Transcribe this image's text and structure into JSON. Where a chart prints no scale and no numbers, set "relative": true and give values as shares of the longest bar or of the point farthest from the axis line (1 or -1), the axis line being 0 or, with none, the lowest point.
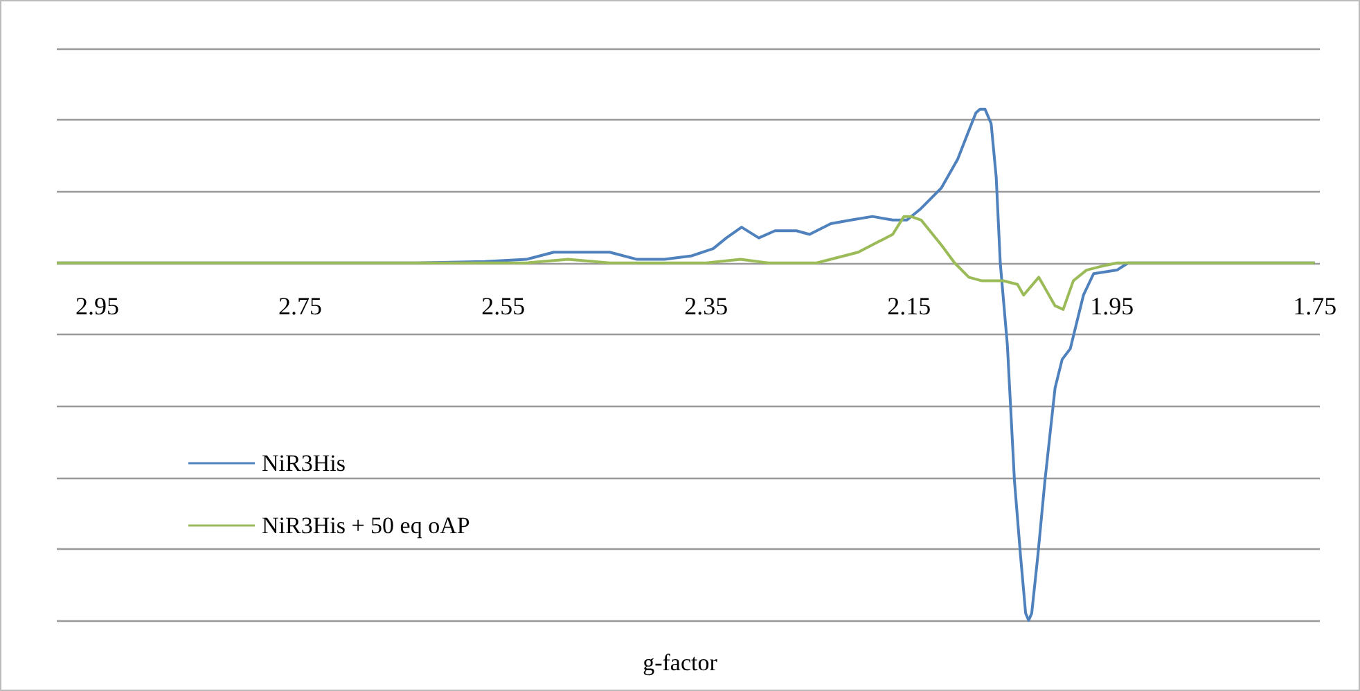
{
  "chart_data": {
    "type": "line",
    "relative": true,
    "xlabel": "g-factor",
    "xlim": [
      2.99,
      1.745
    ],
    "xticks": [
      2.95,
      2.75,
      2.55,
      2.35,
      2.15,
      1.95,
      1.75
    ],
    "grid": "y",
    "legend": "bottom left",
    "marker": "none",
    "line_style": "solid",
    "series": [
      {
        "name": "NiR3His",
        "color": "#4f81bd",
        "x": [
          2.99,
          2.636,
          2.568,
          2.527,
          2.5,
          2.473,
          2.445,
          2.418,
          2.391,
          2.364,
          2.343,
          2.33,
          2.315,
          2.298,
          2.282,
          2.261,
          2.248,
          2.227,
          2.207,
          2.186,
          2.166,
          2.152,
          2.139,
          2.118,
          2.102,
          2.091,
          2.084,
          2.08,
          2.075,
          2.069,
          2.064,
          2.06,
          2.053,
          2.046,
          2.04,
          2.035,
          2.032,
          2.029,
          2.023,
          2.016,
          2.006,
          1.999,
          1.991,
          1.978,
          1.968,
          1.945,
          1.934,
          1.75
        ],
        "values": [
          0,
          0,
          0.004,
          0.01,
          0.03,
          0.03,
          0.03,
          0.01,
          0.01,
          0.02,
          0.04,
          0.07,
          0.1,
          0.07,
          0.09,
          0.09,
          0.08,
          0.11,
          0.12,
          0.13,
          0.12,
          0.12,
          0.15,
          0.21,
          0.29,
          0.37,
          0.42,
          0.43,
          0.43,
          0.39,
          0.24,
          0,
          -0.23,
          -0.61,
          -0.82,
          -0.98,
          -1,
          -0.98,
          -0.82,
          -0.61,
          -0.35,
          -0.27,
          -0.24,
          -0.09,
          -0.03,
          -0.02,
          0,
          0
        ]
      },
      {
        "name": "NiR3His + 50 eq oAP",
        "color": "#9bbb59",
        "x": [
          2.99,
          2.527,
          2.486,
          2.445,
          2.35,
          2.316,
          2.289,
          2.241,
          2.2,
          2.166,
          2.155,
          2.148,
          2.138,
          2.118,
          2.105,
          2.091,
          2.078,
          2.057,
          2.043,
          2.037,
          2.022,
          2.016,
          2.006,
          1.998,
          1.988,
          1.975,
          1.961,
          1.945,
          1.75
        ],
        "values": [
          0,
          0,
          0.01,
          0,
          0,
          0.01,
          0,
          0,
          0.03,
          0.08,
          0.13,
          0.13,
          0.12,
          0.05,
          0,
          -0.04,
          -0.05,
          -0.05,
          -0.06,
          -0.09,
          -0.04,
          -0.07,
          -0.12,
          -0.13,
          -0.05,
          -0.02,
          -0.01,
          0,
          0
        ]
      }
    ]
  }
}
